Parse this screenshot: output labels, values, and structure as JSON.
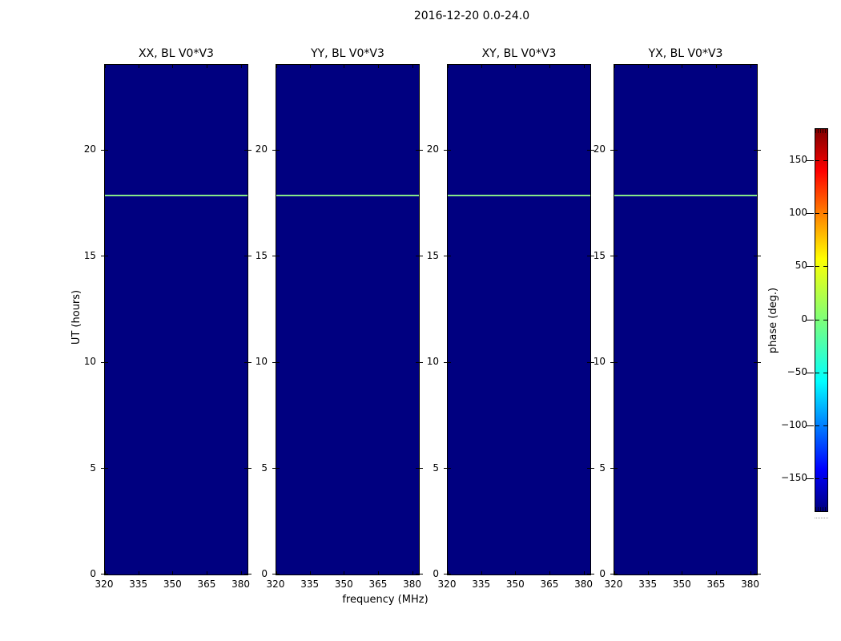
{
  "figure": {
    "title": "2016-12-20 0.0-24.0",
    "xlabel": "frequency (MHz)",
    "ylabel": "UT (hours)",
    "colorbar_label": "phase (deg.)"
  },
  "chart_data": {
    "type": "heatmap",
    "title": "2016-12-20 0.0-24.0",
    "panels": [
      {
        "title": "XX, BL V0*V3"
      },
      {
        "title": "YY, BL V0*V3"
      },
      {
        "title": "XY, BL V0*V3"
      },
      {
        "title": "YX, BL V0*V3"
      }
    ],
    "x_axis": {
      "label": "frequency (MHz)",
      "tick_values": [
        320,
        335,
        350,
        365,
        380
      ],
      "tick_labels": [
        "320",
        "335",
        "350",
        "365",
        "380"
      ],
      "range": [
        320,
        382.6
      ]
    },
    "y_axis": {
      "label": "UT (hours)",
      "tick_values": [
        0,
        5,
        10,
        15,
        20
      ],
      "tick_labels": [
        "0",
        "5",
        "10",
        "15",
        "20"
      ],
      "range": [
        0,
        24
      ]
    },
    "colorbar": {
      "label": "phase (deg.)",
      "tick_values": [
        150,
        100,
        50,
        0,
        -50,
        -100,
        -150
      ],
      "tick_labels": [
        "150",
        "100",
        "50",
        "0",
        "−50",
        "−100",
        "−150"
      ],
      "range": [
        -180,
        180
      ],
      "colormap": "jet"
    },
    "data_description": {
      "background_phase_deg": -180,
      "event_line": {
        "ut_hours": 17.85,
        "phase_deg": 5,
        "spans": "all frequencies, all four panels"
      }
    },
    "colors": {
      "panel_background": "#000080",
      "event_line": "#86e888",
      "colormap_top": "#7f0000",
      "colormap_bottom": "#00007f"
    },
    "layout_hints": {
      "grid": false,
      "legend": "none",
      "colorbar_position": "right"
    }
  }
}
